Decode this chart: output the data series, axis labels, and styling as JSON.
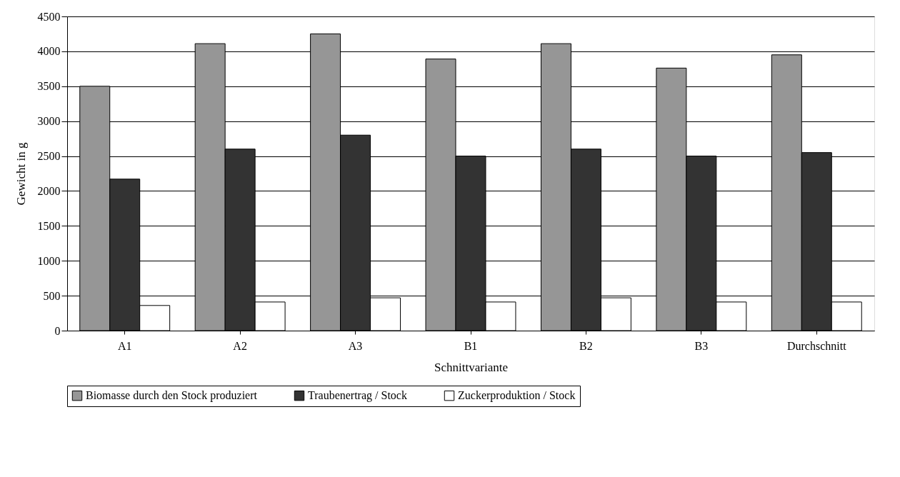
{
  "chart_data": {
    "type": "bar",
    "xlabel": "Schnittvariante",
    "ylabel": "Gewicht in g",
    "categories": [
      "A1",
      "A2",
      "A3",
      "B1",
      "B2",
      "B3",
      "Durchschnitt"
    ],
    "series": [
      {
        "name": "Biomasse durch den Stock produziert",
        "color": "#969696",
        "values": [
          3500,
          4110,
          4250,
          3890,
          4110,
          3760,
          3950
        ]
      },
      {
        "name": "Traubenertrag / Stock",
        "color": "#333333",
        "values": [
          2170,
          2600,
          2800,
          2500,
          2600,
          2500,
          2550
        ]
      },
      {
        "name": "Zuckerproduktion / Stock",
        "color": "#ffffff",
        "values": [
          360,
          410,
          470,
          410,
          470,
          410,
          410
        ]
      }
    ],
    "ylim": [
      0,
      4500
    ],
    "yticks": [
      0,
      500,
      1000,
      1500,
      2000,
      2500,
      3000,
      3500,
      4000,
      4500
    ],
    "grid": "y",
    "legend": "bottom"
  }
}
